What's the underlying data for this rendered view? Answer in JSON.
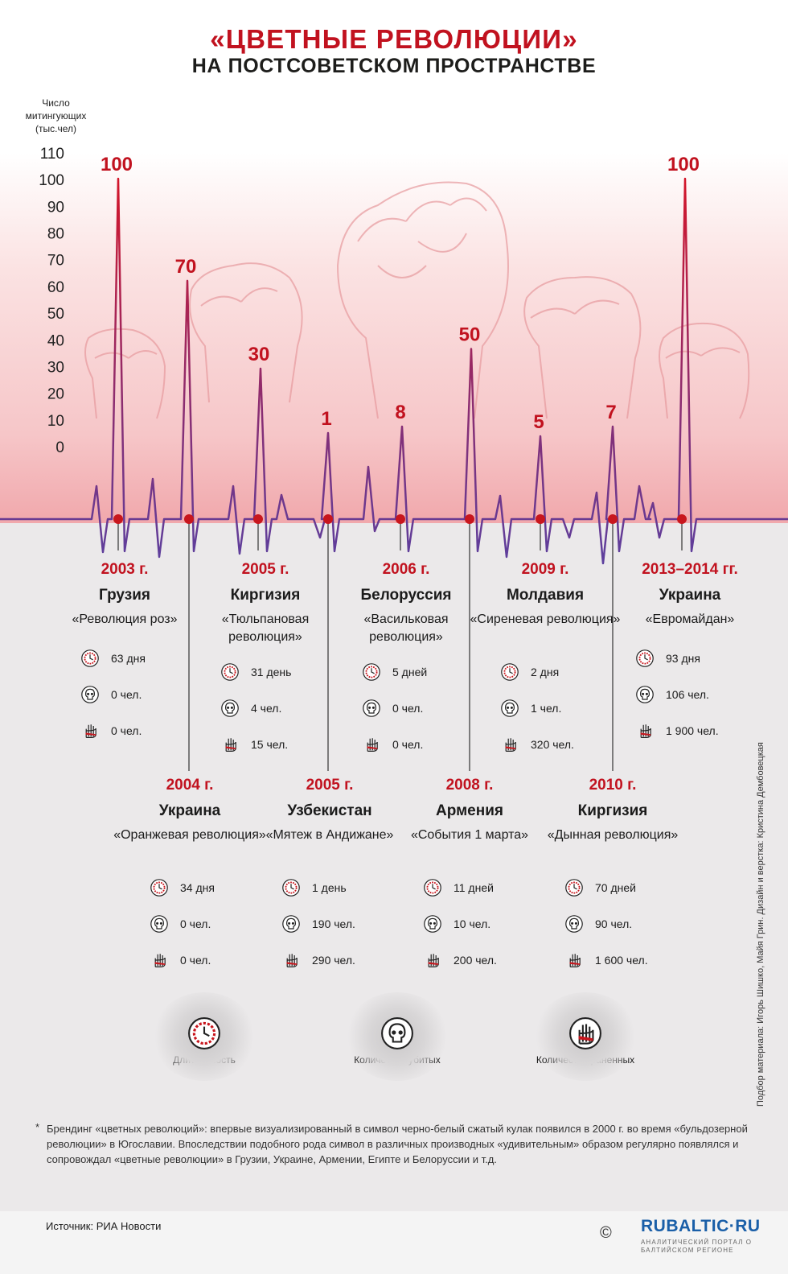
{
  "title": "«ЦВЕТНЫЕ РЕВОЛЮЦИИ»",
  "subtitle": "НА ПОСТСОВЕТСКОМ ПРОСТРАНСТВЕ",
  "y_axis_label": "Число митингующих (тыс.чел)",
  "colors": {
    "accent_red": "#c1121f",
    "line_purple": "#5c3f9e",
    "dot_red": "#c8161d"
  },
  "chart_data": {
    "type": "line",
    "title": "«ЦВЕТНЫЕ РЕВОЛЮЦИИ» НА ПОСТСОВЕТСКОМ ПРОСТРАНСТВЕ",
    "ylabel": "Число митингующих (тыс.чел)",
    "ylim": [
      0,
      110
    ],
    "yticks": [
      110,
      100,
      90,
      80,
      70,
      60,
      50,
      40,
      30,
      20,
      10,
      0
    ],
    "categories": [
      "2003 г. Грузия",
      "2004 г. Украина",
      "2005 г. Киргизия",
      "2005 г. Узбекистан",
      "2006 г. Белоруссия",
      "2008 г. Армения",
      "2009 г. Молдавия",
      "2010 г. Киргизия",
      "2013–2014 гг. Украина"
    ],
    "series": [
      {
        "values": [
          100,
          70,
          30,
          1,
          8,
          50,
          5,
          7,
          100
        ]
      }
    ],
    "peak_labels": [
      "100",
      "70",
      "30",
      "1",
      "8",
      "50",
      "5",
      "7",
      "100"
    ]
  },
  "events": [
    {
      "year": "2003 г.",
      "country": "Грузия",
      "name": "«Революция роз»",
      "duration": "63 дня",
      "killed": "0 чел.",
      "wounded": "0 чел."
    },
    {
      "year": "2004 г.",
      "country": "Украина",
      "name": "«Оранжевая революция»",
      "duration": "34 дня",
      "killed": "0 чел.",
      "wounded": "0 чел."
    },
    {
      "year": "2005 г.",
      "country": "Киргизия",
      "name": "«Тюльпановая революция»",
      "duration": "31 день",
      "killed": "4 чел.",
      "wounded": "15 чел."
    },
    {
      "year": "2005 г.",
      "country": "Узбекистан",
      "name": "«Мятеж в Андижане»",
      "duration": "1 день",
      "killed": "190 чел.",
      "wounded": "290 чел."
    },
    {
      "year": "2006 г.",
      "country": "Белоруссия",
      "name": "«Васильковая революция»",
      "duration": "5 дней",
      "killed": "0 чел.",
      "wounded": "0 чел."
    },
    {
      "year": "2008 г.",
      "country": "Армения",
      "name": "«События 1 марта»",
      "duration": "11 дней",
      "killed": "10 чел.",
      "wounded": "200 чел."
    },
    {
      "year": "2009 г.",
      "country": "Молдавия",
      "name": "«Сиреневая революция»",
      "duration": "2 дня",
      "killed": "1 чел.",
      "wounded": "320 чел."
    },
    {
      "year": "2010 г.",
      "country": "Киргизия",
      "name": "«Дынная революция»",
      "duration": "70 дней",
      "killed": "90 чел.",
      "wounded": "1 600 чел."
    },
    {
      "year": "2013–2014 гг.",
      "country": "Украина",
      "name": "«Евромайдан»",
      "duration": "93 дня",
      "killed": "106 чел.",
      "wounded": "1 900 чел."
    }
  ],
  "legend": {
    "duration": "Длительность",
    "killed": "Количество убитых",
    "wounded": "Количество раненных"
  },
  "icons": {
    "duration": "clock-icon",
    "killed": "skull-icon",
    "wounded": "bandaged-hand-icon"
  },
  "footnote_star": "*",
  "footnote": "Брендинг «цветных революций»: впервые визуализированный в символ черно-белый сжатый кулак появился в 2000 г. во время «бульдозерной революции» в Югославии. Впоследствии подобного рода символ в различных производных «удивительным» образом регулярно появлялся и сопровождал «цветные революции» в Грузии, Украине, Армении, Египте и Белоруссии и т.д.",
  "source": "Источник: РИА Новости",
  "copyright": "©",
  "brand": "RUBALTIC·RU",
  "brand_sub": "АНАЛИТИЧЕСКИЙ ПОРТАЛ О БАЛТИЙСКОМ РЕГИОНЕ",
  "credits": "Подбор материала: Игорь Шишко, Майя Грин. Дизайн и верстка: Кристина Дембовецкая"
}
